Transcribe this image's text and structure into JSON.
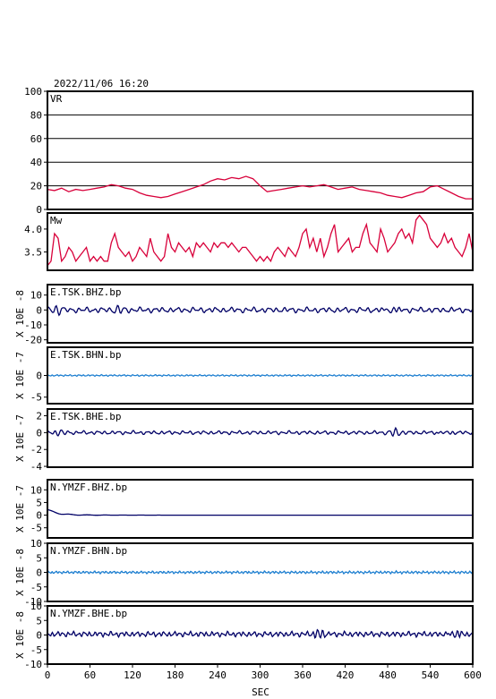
{
  "header": {
    "timestamp": "2022/11/06  16:20"
  },
  "colors": {
    "vr": "#d8003a",
    "mw": "#d8003a",
    "dark_trace": "#000066",
    "light_trace": "#1e7fd0"
  },
  "chart_data": {
    "type": "line",
    "x_axis": {
      "label": "SEC",
      "range": [
        0,
        600
      ],
      "ticks": [
        0,
        60,
        120,
        180,
        240,
        300,
        360,
        420,
        480,
        540,
        600
      ]
    },
    "panels": [
      {
        "id": "vr",
        "label": "VR",
        "ylabel": "",
        "ylim": [
          0,
          100
        ],
        "yticks": [
          0,
          20,
          40,
          60,
          80,
          100
        ],
        "grid": true,
        "color": "#d8003a",
        "series": {
          "x": [
            0,
            10,
            20,
            30,
            40,
            50,
            60,
            70,
            80,
            90,
            100,
            110,
            120,
            130,
            140,
            150,
            160,
            170,
            180,
            190,
            200,
            210,
            220,
            230,
            240,
            250,
            260,
            270,
            280,
            290,
            300,
            310,
            320,
            330,
            340,
            350,
            360,
            370,
            380,
            390,
            400,
            410,
            420,
            430,
            440,
            450,
            460,
            470,
            480,
            490,
            500,
            510,
            520,
            530,
            540,
            550,
            560,
            570,
            580,
            590,
            600
          ],
          "y": [
            17,
            16,
            18,
            15,
            17,
            16,
            17,
            18,
            19,
            21,
            20,
            18,
            17,
            14,
            12,
            11,
            10,
            11,
            13,
            15,
            17,
            19,
            21,
            24,
            26,
            25,
            27,
            26,
            28,
            26,
            20,
            15,
            16,
            17,
            18,
            19,
            20,
            19,
            20,
            21,
            19,
            17,
            18,
            19,
            17,
            16,
            15,
            14,
            12,
            11,
            10,
            12,
            14,
            15,
            19,
            20,
            17,
            14,
            11,
            9,
            9
          ]
        }
      },
      {
        "id": "mw",
        "label": "Mw",
        "ylabel": "",
        "ylim": [
          3.1,
          4.35
        ],
        "yticks": [
          3.5,
          4.0
        ],
        "tick_labels": [
          "3.5",
          "4.0"
        ],
        "grid": false,
        "color": "#d8003a",
        "series": {
          "x": [
            0,
            5,
            10,
            15,
            20,
            25,
            30,
            35,
            40,
            45,
            50,
            55,
            60,
            65,
            70,
            75,
            80,
            85,
            90,
            95,
            100,
            105,
            110,
            115,
            120,
            125,
            130,
            135,
            140,
            145,
            150,
            155,
            160,
            165,
            170,
            175,
            180,
            185,
            190,
            195,
            200,
            205,
            210,
            215,
            220,
            225,
            230,
            235,
            240,
            245,
            250,
            255,
            260,
            265,
            270,
            275,
            280,
            285,
            290,
            295,
            300,
            305,
            310,
            315,
            320,
            325,
            330,
            335,
            340,
            345,
            350,
            355,
            360,
            365,
            370,
            375,
            380,
            385,
            390,
            395,
            400,
            405,
            410,
            415,
            420,
            425,
            430,
            435,
            440,
            445,
            450,
            455,
            460,
            465,
            470,
            475,
            480,
            485,
            490,
            495,
            500,
            505,
            510,
            515,
            520,
            525,
            530,
            535,
            540,
            545,
            550,
            555,
            560,
            565,
            570,
            575,
            580,
            585,
            590,
            595,
            600
          ],
          "y": [
            3.2,
            3.3,
            3.9,
            3.8,
            3.3,
            3.4,
            3.6,
            3.5,
            3.3,
            3.4,
            3.5,
            3.6,
            3.3,
            3.4,
            3.3,
            3.4,
            3.3,
            3.3,
            3.7,
            3.9,
            3.6,
            3.5,
            3.4,
            3.5,
            3.3,
            3.4,
            3.6,
            3.5,
            3.4,
            3.8,
            3.5,
            3.4,
            3.3,
            3.4,
            3.9,
            3.6,
            3.5,
            3.7,
            3.6,
            3.5,
            3.6,
            3.4,
            3.7,
            3.6,
            3.7,
            3.6,
            3.5,
            3.7,
            3.6,
            3.7,
            3.7,
            3.6,
            3.7,
            3.6,
            3.5,
            3.6,
            3.6,
            3.5,
            3.4,
            3.3,
            3.4,
            3.3,
            3.4,
            3.3,
            3.5,
            3.6,
            3.5,
            3.4,
            3.6,
            3.5,
            3.4,
            3.6,
            3.9,
            4.0,
            3.6,
            3.8,
            3.5,
            3.8,
            3.4,
            3.6,
            3.9,
            4.1,
            3.5,
            3.6,
            3.7,
            3.8,
            3.5,
            3.6,
            3.6,
            3.9,
            4.1,
            3.7,
            3.6,
            3.5,
            4.0,
            3.8,
            3.5,
            3.6,
            3.7,
            3.9,
            4.0,
            3.8,
            3.9,
            3.7,
            4.2,
            4.3,
            4.2,
            4.1,
            3.8,
            3.7,
            3.6,
            3.7,
            3.9,
            3.7,
            3.8,
            3.6,
            3.5,
            3.4,
            3.6,
            3.9,
            3.5
          ]
        }
      },
      {
        "id": "e-tsk-bhz",
        "label": "E.TSK.BHZ.bp",
        "ylabel": "X 10E -8",
        "ylim": [
          -22,
          17
        ],
        "yticks": [
          -20,
          -10,
          0,
          10
        ],
        "grid": false,
        "color": "#000066",
        "wave": {
          "amplitude": 1.8,
          "cycles": 56,
          "offset": 0,
          "phase": 0.4,
          "bursts": [
            [
              15,
              2.2
            ],
            [
              485,
              3.0
            ],
            [
              100,
              1.6
            ]
          ],
          "samples": 480
        }
      },
      {
        "id": "e-tsk-bhn",
        "label": "E.TSK.BHN.bp",
        "ylabel": "X 10E -7",
        "ylim": [
          -6.5,
          6.5
        ],
        "yticks": [
          -5,
          0
        ],
        "grid": false,
        "color": "#1e7fd0",
        "wave": {
          "amplitude": 0.18,
          "cycles": 95,
          "offset": 0,
          "phase": 1.2,
          "bursts": [],
          "samples": 600
        }
      },
      {
        "id": "e-tsk-bhe",
        "label": "E.TSK.BHE.bp",
        "ylabel": "X 10E -7",
        "ylim": [
          -4.1,
          2.8
        ],
        "yticks": [
          -4,
          -2,
          0,
          2
        ],
        "grid": false,
        "color": "#000066",
        "wave": {
          "amplitude": 0.22,
          "cycles": 60,
          "offset": 0,
          "phase": 0.9,
          "bursts": [
            [
              20,
              0.3
            ],
            [
              490,
              0.35
            ],
            [
              560,
              0.25
            ]
          ],
          "samples": 480
        }
      },
      {
        "id": "n-ymzf-bhz",
        "label": "N.YMZF.BHZ.bp",
        "ylabel": "X 10E -7",
        "ylim": [
          -9,
          14
        ],
        "yticks": [
          -5,
          0,
          5,
          10
        ],
        "grid": false,
        "color": "#000066",
        "decay": {
          "start": 2.2,
          "tau": 14,
          "ripple": 0.3,
          "samples": 480
        }
      },
      {
        "id": "n-ymzf-bhn",
        "label": "N.YMZF.BHN.bp",
        "ylabel": "X 10E -8",
        "ylim": [
          -10,
          10
        ],
        "yticks": [
          -10,
          -5,
          0,
          5,
          10
        ],
        "grid": false,
        "color": "#1e7fd0",
        "wave": {
          "amplitude": 0.45,
          "cycles": 110,
          "offset": 0,
          "phase": 0.3,
          "bursts": [],
          "samples": 600
        }
      },
      {
        "id": "n-ymzf-bhe",
        "label": "N.YMZF.BHE.bp",
        "ylabel": "X 10E -8",
        "ylim": [
          -10,
          10
        ],
        "yticks": [
          -10,
          -5,
          0,
          5,
          10
        ],
        "grid": false,
        "color": "#000066",
        "wave": {
          "amplitude": 0.9,
          "cycles": 80,
          "offset": 0.3,
          "phase": 2.1,
          "bursts": [
            [
              385,
              1.2
            ],
            [
              575,
              1.2
            ]
          ],
          "samples": 520
        }
      }
    ]
  }
}
